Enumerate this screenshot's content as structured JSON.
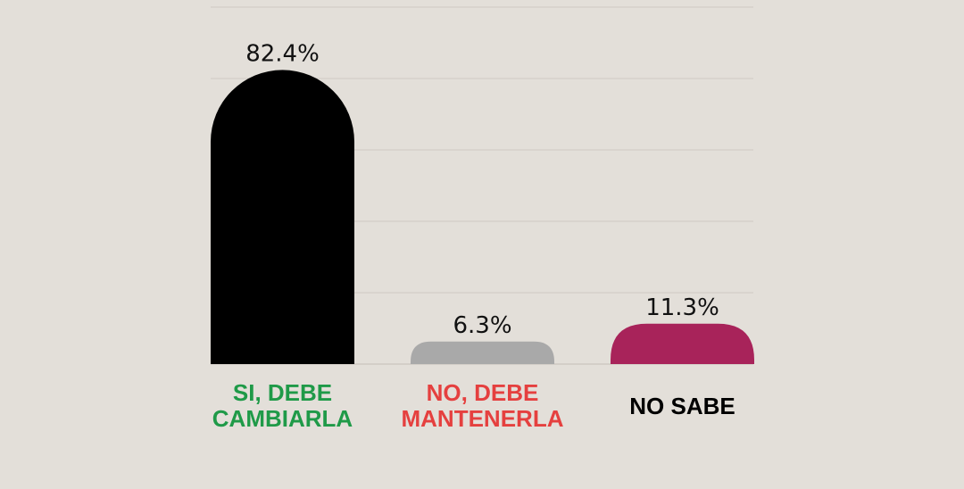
{
  "chart_data": {
    "type": "bar",
    "title": "",
    "xlabel": "",
    "ylabel": "",
    "ylim": [
      0,
      100
    ],
    "grid": true,
    "categories": [
      "SI, DEBE CAMBIARLA",
      "NO, DEBE MANTENERLA",
      "NO SABE"
    ],
    "category_lines": [
      [
        "SI, DEBE",
        "CAMBIARLA"
      ],
      [
        "NO, DEBE",
        "MANTENERLA"
      ],
      [
        "NO SABE"
      ]
    ],
    "values": [
      82.4,
      6.3,
      11.3
    ],
    "value_labels": [
      "82.4%",
      "6.3%",
      "11.3%"
    ],
    "bar_colors": [
      "#000000",
      "#a9a9a9",
      "#a8235a"
    ],
    "label_colors": [
      "#1f9a48",
      "#e5403f",
      "#000000"
    ],
    "gridline_values": [
      20,
      40,
      60,
      80,
      100
    ]
  }
}
